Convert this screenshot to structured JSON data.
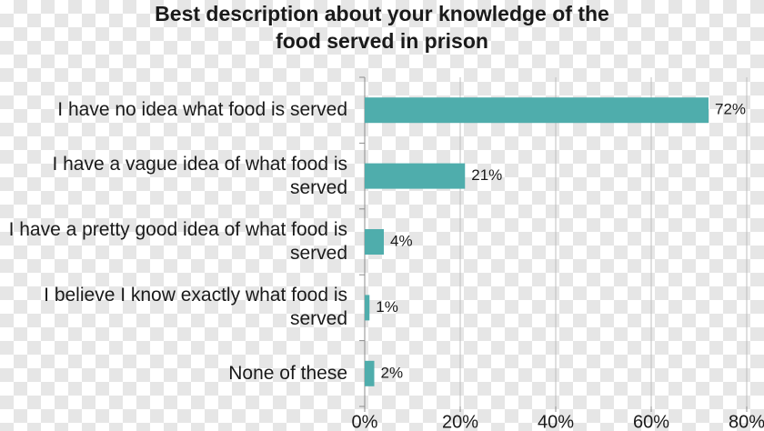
{
  "chart_data": {
    "type": "bar",
    "orientation": "horizontal",
    "title": "Best description about your knowledge of the food served in prison",
    "categories": [
      "I have no idea what food is served",
      "I have a vague idea of what food is served",
      "I have a pretty good idea of what food is served",
      "I believe I know exactly what food is served",
      "None of these"
    ],
    "values": [
      72,
      21,
      4,
      1,
      2
    ],
    "value_labels": [
      "72%",
      "21%",
      "4%",
      "1%",
      "2%"
    ],
    "color": "#4fadac",
    "xlim": [
      0,
      80
    ],
    "xticks": [
      {
        "value": 0,
        "label": "0%"
      },
      {
        "value": 20,
        "label": "20%"
      },
      {
        "value": 40,
        "label": "40%"
      },
      {
        "value": 60,
        "label": "60%"
      },
      {
        "value": 80,
        "label": "80%"
      }
    ],
    "grid": true
  }
}
